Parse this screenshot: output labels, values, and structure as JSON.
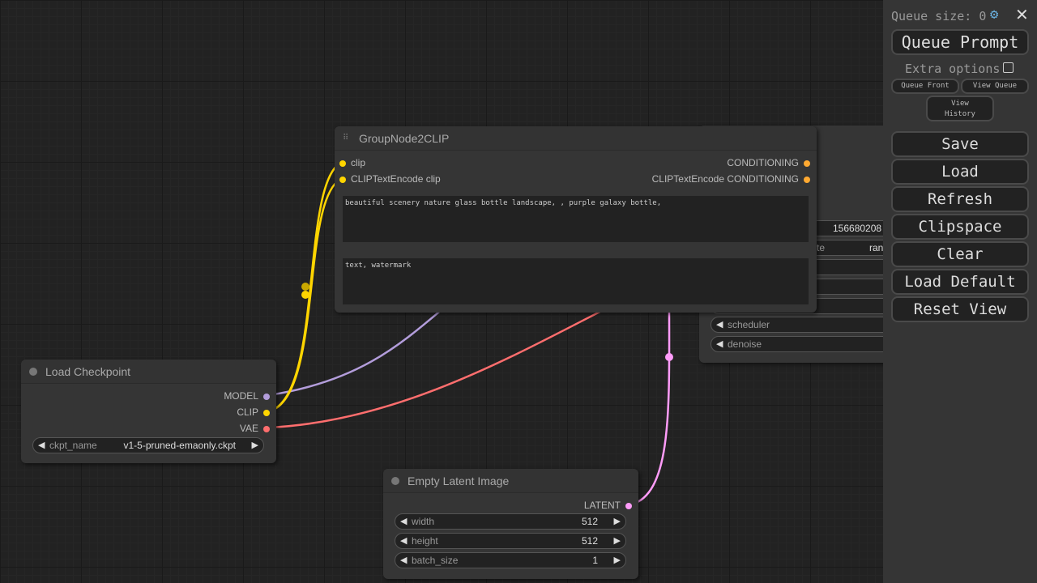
{
  "colors": {
    "clip": "#ffd500",
    "model": "#b39ddb",
    "vae": "#ff6e6e",
    "latent": "#ff9cf9",
    "conditioning": "#ffa931"
  },
  "group_node": {
    "title": "GroupNode2CLIP",
    "inputs": [
      "clip",
      "CLIPTextEncode clip"
    ],
    "outputs": [
      "CONDITIONING",
      "CLIPTextEncode CONDITIONING"
    ],
    "text1": "beautiful scenery nature glass bottle landscape, , purple galaxy bottle,",
    "text2": "text, watermark"
  },
  "ksampler": {
    "seed": "156680208",
    "control_label": "te",
    "control_value": "ran",
    "scheduler": "scheduler",
    "denoise": "denoise"
  },
  "load_checkpoint": {
    "title": "Load Checkpoint",
    "outputs": [
      "MODEL",
      "CLIP",
      "VAE"
    ],
    "ckpt_label": "ckpt_name",
    "ckpt_value": "v1-5-pruned-emaonly.ckpt"
  },
  "empty_latent": {
    "title": "Empty Latent Image",
    "output": "LATENT",
    "width_label": "width",
    "width": "512",
    "height_label": "height",
    "height": "512",
    "batch_label": "batch_size",
    "batch": "1"
  },
  "menu": {
    "queue_size": "Queue size: 0",
    "queue_prompt": "Queue Prompt",
    "extra_options": "Extra options",
    "queue_front": "Queue Front",
    "view_queue": "View Queue",
    "view_history": "View History",
    "buttons": [
      "Save",
      "Load",
      "Refresh",
      "Clipspace",
      "Clear",
      "Load Default",
      "Reset View"
    ]
  }
}
